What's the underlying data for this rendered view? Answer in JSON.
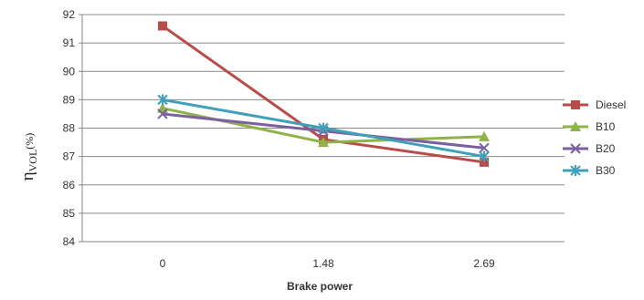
{
  "chart_data": {
    "type": "line",
    "categories": [
      "0",
      "1.48",
      "2.69"
    ],
    "series": [
      {
        "name": "Diesel",
        "values": [
          91.6,
          87.6,
          86.8
        ],
        "color": "#b84c48",
        "marker": "square"
      },
      {
        "name": "B10",
        "values": [
          88.7,
          87.5,
          87.7
        ],
        "color": "#8fb347",
        "marker": "triangle"
      },
      {
        "name": "B20",
        "values": [
          88.5,
          87.9,
          87.3
        ],
        "color": "#7b5fa0",
        "marker": "x"
      },
      {
        "name": "B30",
        "values": [
          89.0,
          88.0,
          87.0
        ],
        "color": "#3fa0b8",
        "marker": "star"
      }
    ],
    "title": "",
    "xlabel": "Brake power",
    "ylabel": "η",
    "ylabel_subscript": "VOL",
    "ylabel_suffix": "(%)",
    "ylim": [
      84,
      92
    ],
    "yticks": [
      84,
      85,
      86,
      87,
      88,
      89,
      90,
      91,
      92
    ],
    "grid": "horizontal",
    "legend": "right"
  }
}
